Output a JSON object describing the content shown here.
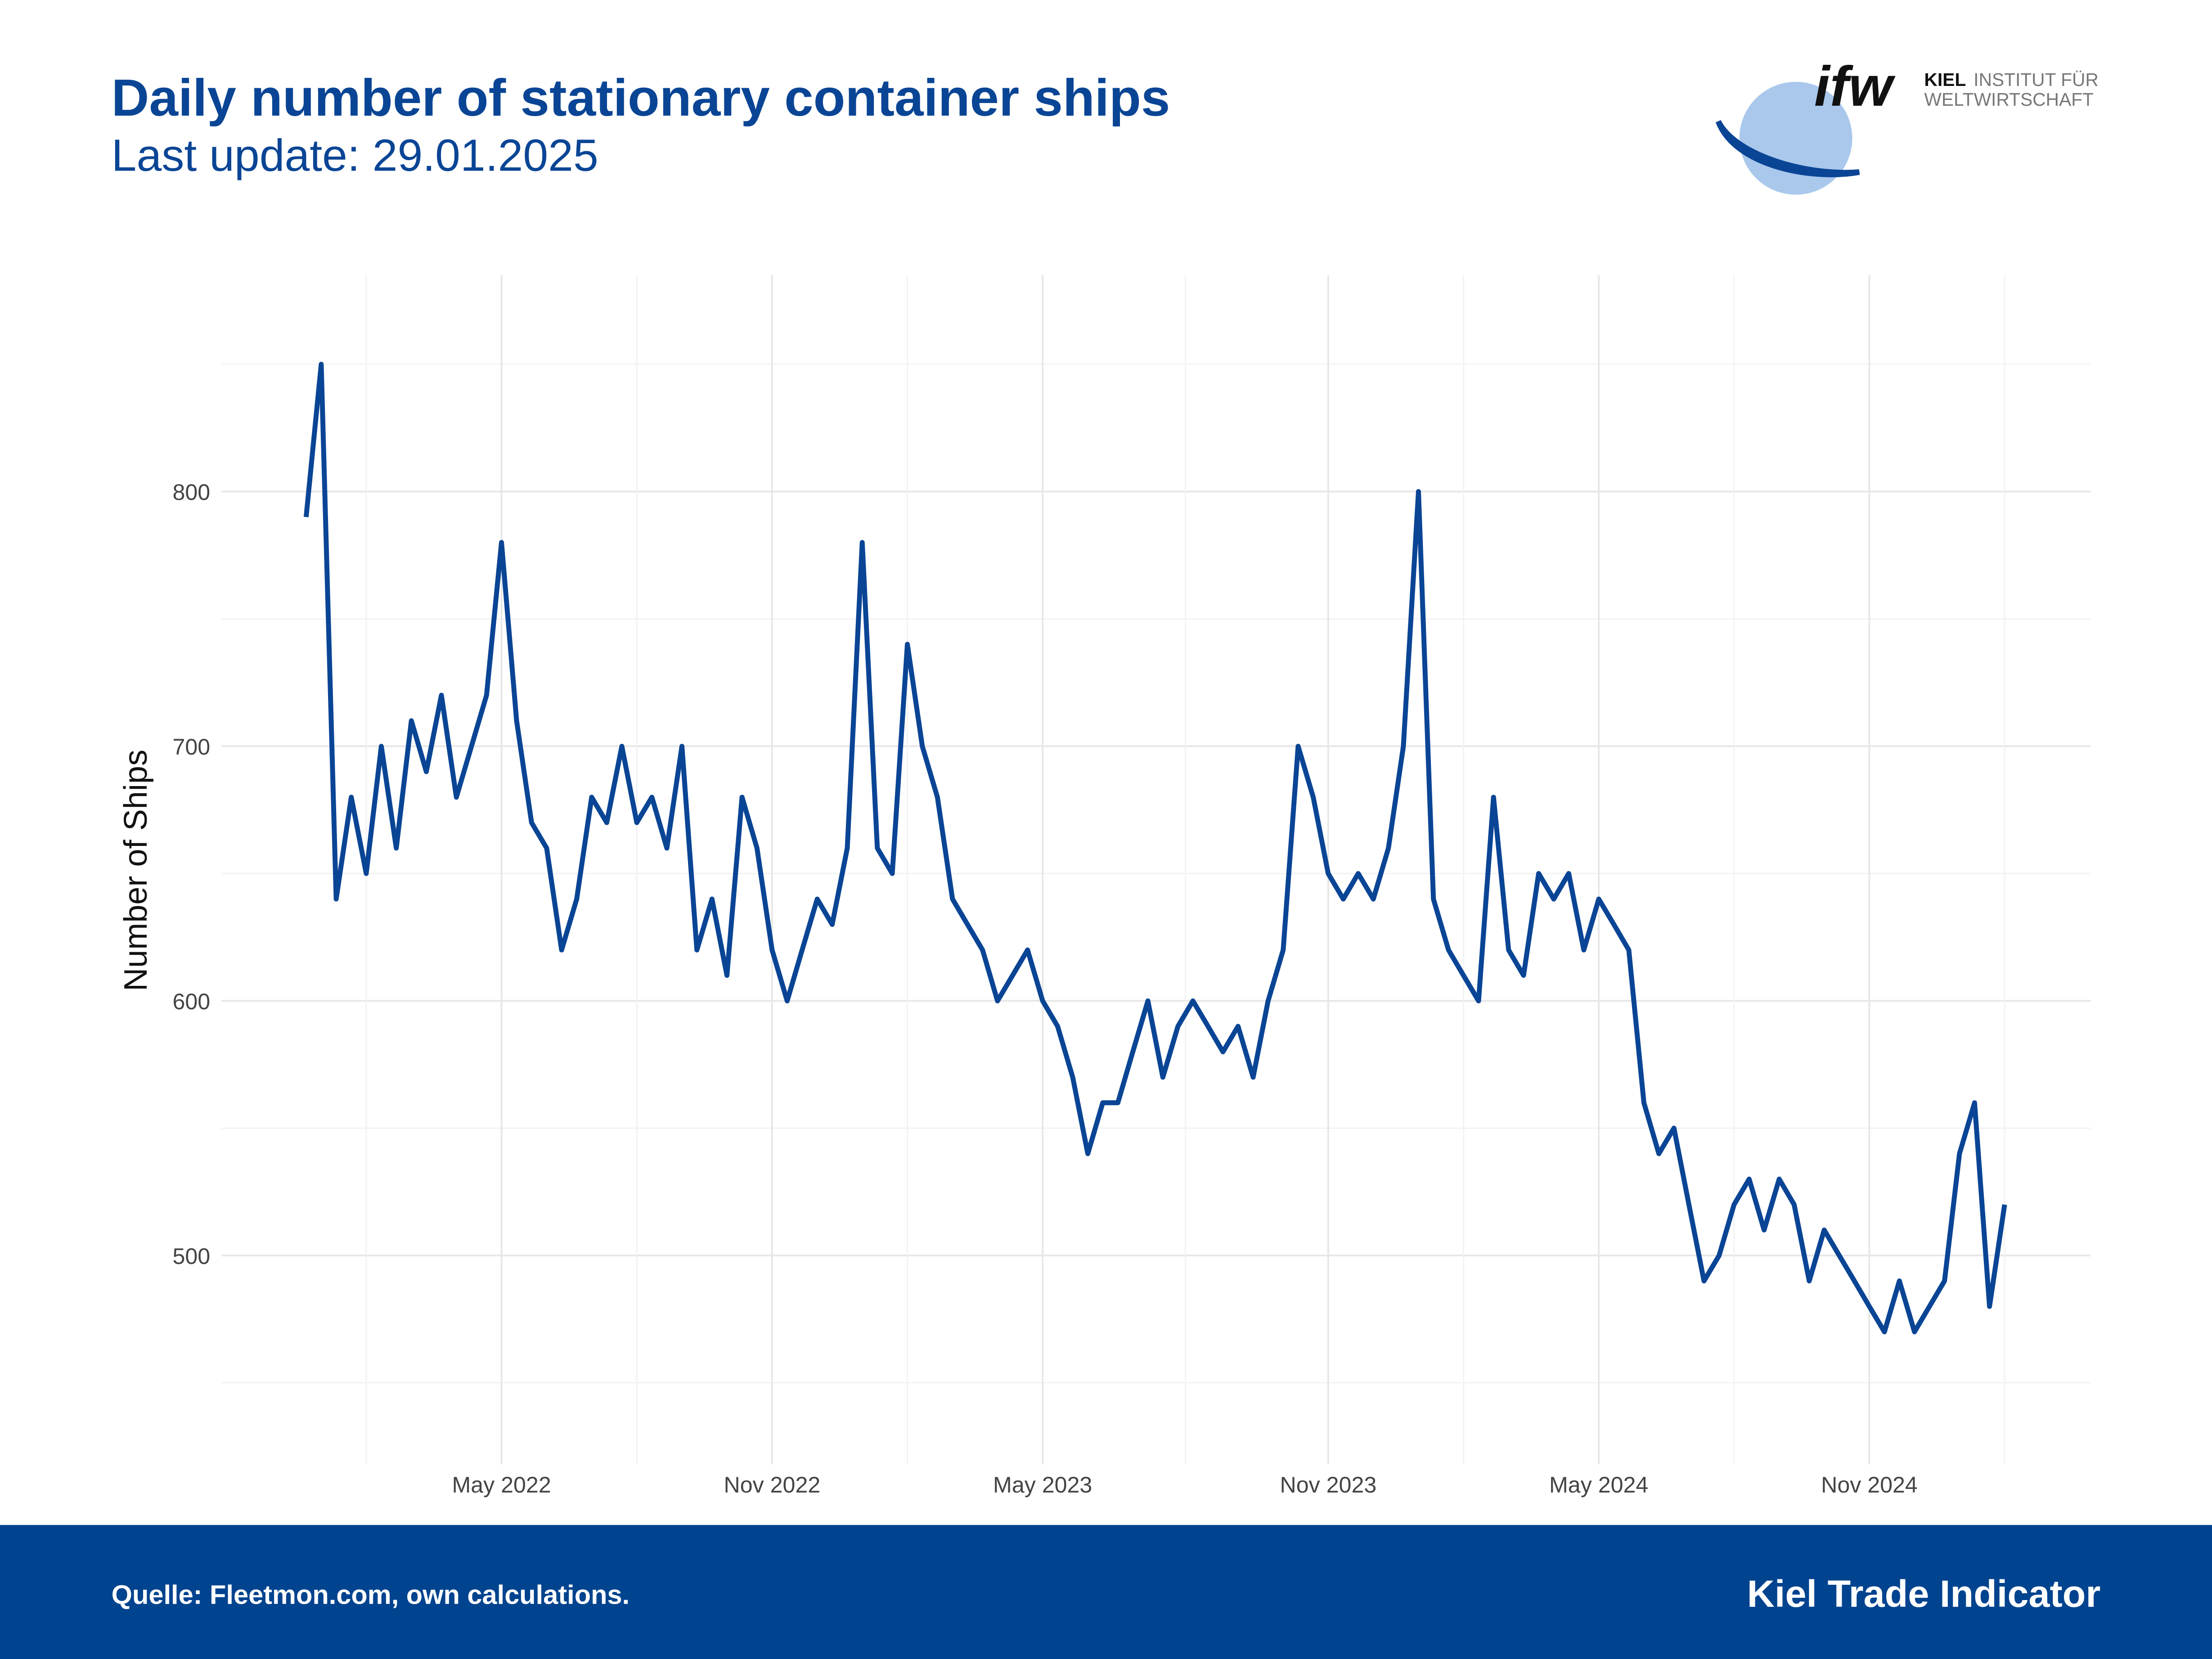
{
  "chart_data": {
    "type": "line",
    "title": "Daily number of stationary container ships",
    "subtitle": "Last update: 29.01.2025",
    "y_label": "Number of Ships",
    "source": "Quelle: Fleetmon.com, own calculations.",
    "footer_title": "Kiel Trade Indicator",
    "logo": {
      "mark": "ifw",
      "line1_bold": "KIEL",
      "line1": "INSTITUT FÜR",
      "line2": "WELTWIRTSCHAFT"
    },
    "categories": [
      null,
      null,
      null,
      null,
      null,
      null,
      null,
      null,
      null,
      null,
      null,
      null,
      null,
      "May 2022",
      null,
      null,
      null,
      null,
      null,
      null,
      null,
      null,
      null,
      null,
      null,
      null,
      null,
      null,
      null,
      null,
      null,
      "Nov 2022",
      null,
      null,
      null,
      null,
      null,
      null,
      null,
      null,
      null,
      null,
      null,
      null,
      null,
      null,
      null,
      null,
      null,
      "May 2023",
      null,
      null,
      null,
      null,
      null,
      null,
      null,
      null,
      null,
      null,
      null,
      null,
      null,
      null,
      null,
      null,
      null,
      null,
      "Nov 2023",
      null,
      null,
      null,
      null,
      null,
      null,
      null,
      null,
      null,
      null,
      null,
      null,
      null,
      null,
      null,
      null,
      null,
      "May 2024",
      null,
      null,
      null,
      null,
      null,
      null,
      null,
      null,
      null,
      null,
      null,
      null,
      null,
      null,
      null,
      null,
      null,
      "Nov 2024",
      null,
      null,
      null,
      null,
      null,
      null,
      null,
      null,
      null
    ],
    "series": [
      {
        "name": "Number of Ships",
        "color": "#0a4595",
        "values": [
          790,
          850,
          640,
          680,
          650,
          700,
          660,
          710,
          690,
          720,
          680,
          700,
          720,
          780,
          710,
          670,
          660,
          620,
          640,
          680,
          670,
          700,
          670,
          680,
          660,
          700,
          620,
          640,
          610,
          680,
          660,
          620,
          600,
          620,
          640,
          630,
          660,
          780,
          660,
          650,
          740,
          700,
          680,
          640,
          630,
          620,
          600,
          610,
          620,
          600,
          590,
          570,
          540,
          560,
          560,
          580,
          600,
          570,
          590,
          600,
          590,
          580,
          590,
          570,
          600,
          620,
          700,
          680,
          650,
          640,
          650,
          640,
          660,
          700,
          800,
          640,
          620,
          610,
          600,
          680,
          620,
          610,
          650,
          640,
          650,
          620,
          640,
          630,
          620,
          560,
          540,
          550,
          520,
          490,
          500,
          520,
          530,
          510,
          530,
          520,
          490,
          510,
          500,
          490,
          480,
          470,
          490,
          470,
          480,
          490,
          540,
          560,
          480,
          520
        ]
      }
    ],
    "ylim": [
      418,
      885
    ],
    "yticks": [
      500,
      600,
      700,
      800
    ],
    "grid": true
  }
}
